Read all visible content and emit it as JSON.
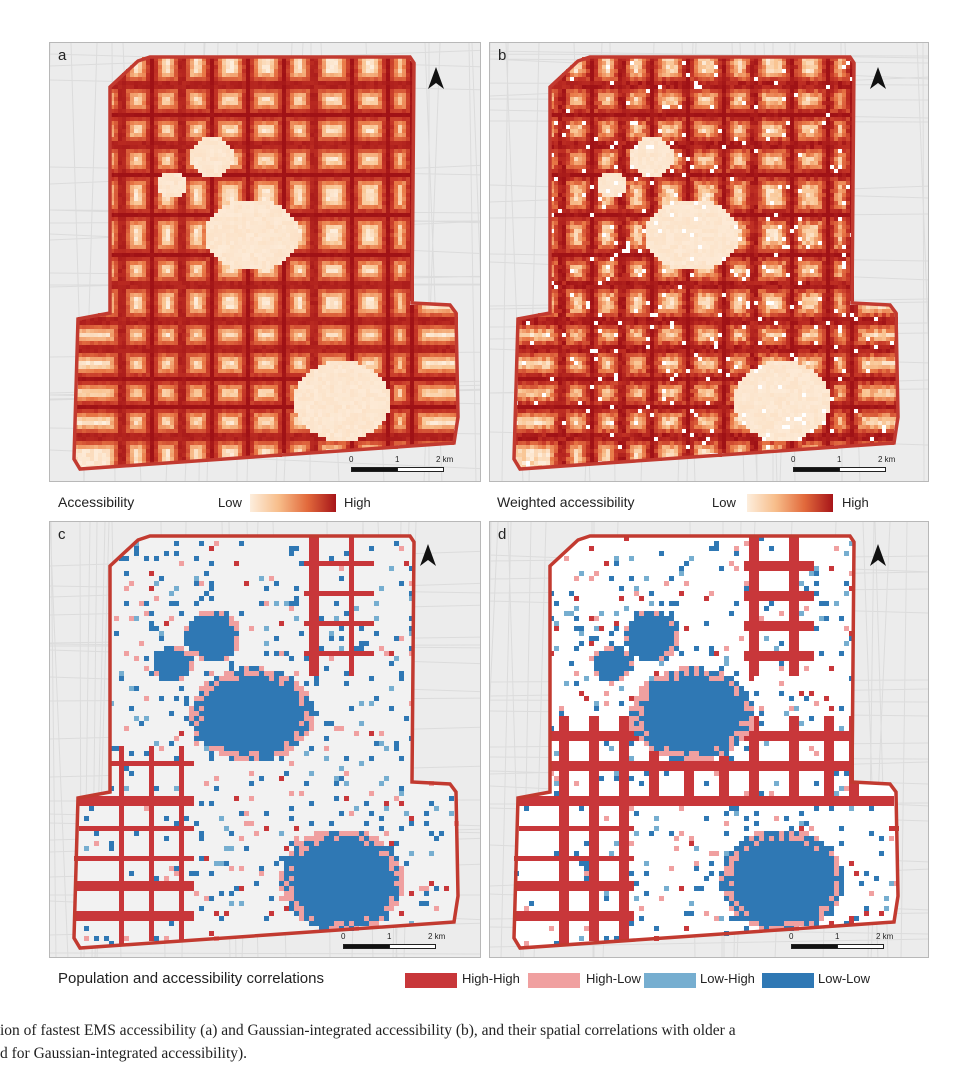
{
  "panels": {
    "a": {
      "label": "a"
    },
    "b": {
      "label": "b"
    },
    "c": {
      "label": "c"
    },
    "d": {
      "label": "d"
    }
  },
  "scalebar": {
    "t0": "0",
    "t1": "1",
    "t2": "2 km"
  },
  "legend_top_left": {
    "title": "Accessibility",
    "low": "Low",
    "high": "High"
  },
  "legend_top_right": {
    "title": "Weighted accessibility",
    "low": "Low",
    "high": "High"
  },
  "legend_bottom": {
    "title": "Population and accessibility correlations",
    "classes": [
      {
        "label": "High-High",
        "color": "#c8373a"
      },
      {
        "label": "High-Low",
        "color": "#f0a0a0"
      },
      {
        "label": "Low-High",
        "color": "#76aed0"
      },
      {
        "label": "Low-Low",
        "color": "#2f78b4"
      }
    ]
  },
  "colors": {
    "low": "#fdeedd",
    "high": "#a71519",
    "boundary": "#c23a30",
    "basemap": "#ececec"
  },
  "caption": {
    "line1": "ion of fastest EMS accessibility (a) and Gaussian-integrated accessibility (b), and their spatial correlations with older a",
    "line2": " d for Gaussian-integrated accessibility)."
  }
}
